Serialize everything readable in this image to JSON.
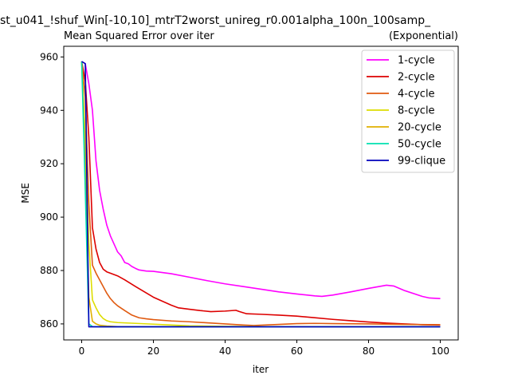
{
  "figure": {
    "suptitle": "st_u041_!shuf_Win[-10,10]_mtrT2worst_unireg_r0.001alpha_100n_100samp_",
    "title_left": "Mean Squared Error over iter",
    "title_right": "(Exponential)"
  },
  "chart_data": {
    "type": "line",
    "xlabel": "iter",
    "ylabel": "MSE",
    "xlim": [
      -5,
      105
    ],
    "ylim": [
      854,
      964
    ],
    "xticks": [
      0,
      20,
      40,
      60,
      80,
      100
    ],
    "yticks": [
      860,
      880,
      900,
      920,
      940,
      960
    ],
    "grid": false,
    "legend_position": "top-right",
    "series": [
      {
        "name": "1-cycle",
        "color": "#ff00ff",
        "points": [
          [
            0,
            958.3
          ],
          [
            1,
            957.5
          ],
          [
            2,
            950
          ],
          [
            3,
            940
          ],
          [
            4,
            921
          ],
          [
            5,
            910
          ],
          [
            6,
            903
          ],
          [
            7,
            897
          ],
          [
            8,
            893
          ],
          [
            9,
            890
          ],
          [
            10,
            887
          ],
          [
            11,
            885.5
          ],
          [
            12,
            883
          ],
          [
            13,
            882.5
          ],
          [
            14,
            881.5
          ],
          [
            15,
            880.8
          ],
          [
            16,
            880.2
          ],
          [
            18,
            879.8
          ],
          [
            20,
            879.7
          ],
          [
            25,
            878.8
          ],
          [
            30,
            877.5
          ],
          [
            35,
            876.2
          ],
          [
            40,
            875
          ],
          [
            45,
            874
          ],
          [
            50,
            873
          ],
          [
            55,
            872
          ],
          [
            60,
            871.2
          ],
          [
            65,
            870.5
          ],
          [
            67,
            870.3
          ],
          [
            70,
            870.8
          ],
          [
            75,
            872
          ],
          [
            80,
            873.3
          ],
          [
            85,
            874.5
          ],
          [
            87,
            874.2
          ],
          [
            90,
            872.5
          ],
          [
            95,
            870.3
          ],
          [
            97,
            869.7
          ],
          [
            100,
            869.5
          ]
        ]
      },
      {
        "name": "2-cycle",
        "color": "#dd0000",
        "points": [
          [
            0,
            958.3
          ],
          [
            1,
            951
          ],
          [
            2,
            930
          ],
          [
            3,
            896
          ],
          [
            4,
            888
          ],
          [
            5,
            883
          ],
          [
            6,
            880.5
          ],
          [
            7,
            879.5
          ],
          [
            8,
            879
          ],
          [
            10,
            878
          ],
          [
            12,
            876.5
          ],
          [
            15,
            874
          ],
          [
            20,
            870
          ],
          [
            25,
            867
          ],
          [
            27,
            866
          ],
          [
            30,
            865.5
          ],
          [
            33,
            865
          ],
          [
            36,
            864.6
          ],
          [
            40,
            864.8
          ],
          [
            43,
            865.1
          ],
          [
            44,
            864.6
          ],
          [
            46,
            863.8
          ],
          [
            50,
            863.6
          ],
          [
            55,
            863.3
          ],
          [
            60,
            862.9
          ],
          [
            65,
            862.3
          ],
          [
            70,
            861.7
          ],
          [
            75,
            861.2
          ],
          [
            80,
            860.7
          ],
          [
            85,
            860.3
          ],
          [
            90,
            860
          ],
          [
            95,
            859.7
          ],
          [
            100,
            859.6
          ]
        ]
      },
      {
        "name": "4-cycle",
        "color": "#e05a10",
        "points": [
          [
            0,
            958.3
          ],
          [
            1,
            945
          ],
          [
            2,
            905
          ],
          [
            3,
            882
          ],
          [
            4,
            879
          ],
          [
            5,
            876.5
          ],
          [
            6,
            874
          ],
          [
            7,
            871.5
          ],
          [
            8,
            869.5
          ],
          [
            9,
            868
          ],
          [
            10,
            866.8
          ],
          [
            12,
            865
          ],
          [
            14,
            863.3
          ],
          [
            16,
            862.3
          ],
          [
            18,
            861.9
          ],
          [
            20,
            861.6
          ],
          [
            25,
            861.1
          ],
          [
            30,
            860.8
          ],
          [
            35,
            860.4
          ],
          [
            40,
            860
          ],
          [
            45,
            859.6
          ],
          [
            48,
            859.4
          ],
          [
            55,
            859.8
          ],
          [
            60,
            860.1
          ],
          [
            65,
            860.2
          ],
          [
            70,
            860.1
          ],
          [
            80,
            860
          ],
          [
            90,
            859.8
          ],
          [
            100,
            859.7
          ]
        ]
      },
      {
        "name": "8-cycle",
        "color": "#dddd00",
        "points": [
          [
            0,
            958.3
          ],
          [
            1,
            930
          ],
          [
            2,
            890
          ],
          [
            3,
            869
          ],
          [
            4,
            866
          ],
          [
            5,
            863.5
          ],
          [
            6,
            862
          ],
          [
            7,
            861.2
          ],
          [
            8,
            860.8
          ],
          [
            10,
            860.5
          ],
          [
            15,
            860.2
          ],
          [
            20,
            859.9
          ],
          [
            25,
            859.6
          ],
          [
            30,
            859.3
          ],
          [
            40,
            859.1
          ],
          [
            50,
            859
          ],
          [
            100,
            859
          ]
        ]
      },
      {
        "name": "20-cycle",
        "color": "#e0b000",
        "points": [
          [
            0,
            958.3
          ],
          [
            1,
            920
          ],
          [
            2,
            870
          ],
          [
            3,
            861
          ],
          [
            4,
            860
          ],
          [
            5,
            859.5
          ],
          [
            7,
            859.2
          ],
          [
            10,
            859
          ],
          [
            20,
            859
          ],
          [
            100,
            859
          ]
        ]
      },
      {
        "name": "50-cycle",
        "color": "#00e0b0",
        "points": [
          [
            0,
            958.3
          ],
          [
            1,
            910
          ],
          [
            2,
            860
          ],
          [
            3,
            859
          ],
          [
            5,
            858.9
          ],
          [
            100,
            858.9
          ]
        ]
      },
      {
        "name": "99-clique",
        "color": "#0000bb",
        "points": [
          [
            0,
            958.3
          ],
          [
            1,
            957.5
          ],
          [
            2,
            858.9
          ],
          [
            3,
            858.9
          ],
          [
            100,
            858.9
          ]
        ]
      }
    ]
  }
}
